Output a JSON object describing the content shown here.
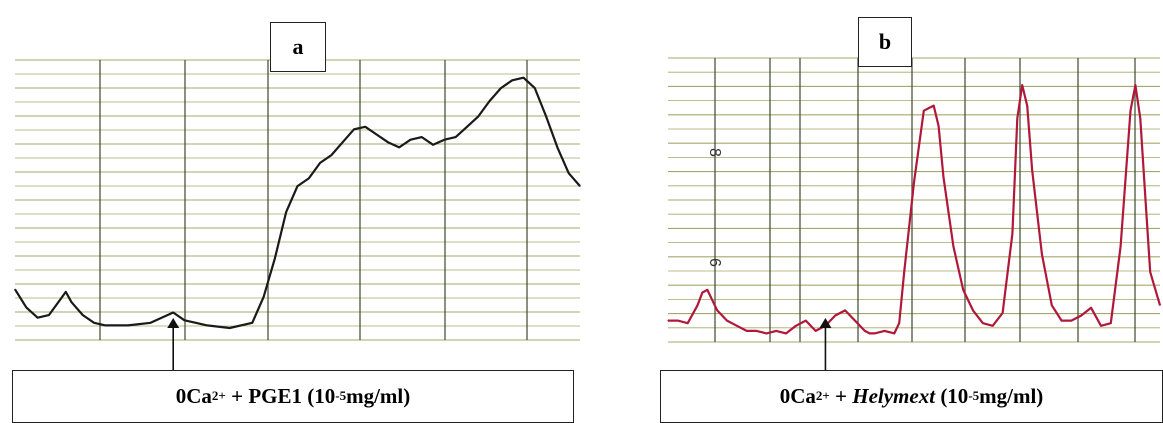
{
  "panels": [
    {
      "label": "a",
      "caption": {
        "prefix": "0Ca",
        "prefix_sup": "2+",
        "agent": "PGE1",
        "agent_italic": false,
        "conc_open": "(10",
        "conc_sup": "-5",
        "conc_close": " mg/ml)"
      },
      "trace_color": "#1a1a1a",
      "marker_label": "arrow"
    },
    {
      "label": "b",
      "caption": {
        "prefix": "0Ca",
        "prefix_sup": "2+",
        "agent": "Helymext",
        "agent_italic": true,
        "conc_open": "(10",
        "conc_sup": "-5",
        "conc_close": " mg/ml)"
      },
      "trace_color": "#b0183a",
      "marker_label": "arrow"
    }
  ],
  "chart_data": [
    {
      "type": "line",
      "title": "",
      "xlabel": "",
      "ylabel": "",
      "grid": true,
      "series": [
        {
          "x": [
            0,
            2,
            4,
            6,
            8,
            9,
            10,
            12,
            14,
            16,
            18,
            20,
            24,
            28,
            30,
            32,
            34,
            38,
            42,
            44,
            46,
            48,
            50,
            52,
            54,
            56,
            58,
            60,
            62,
            64,
            66,
            68,
            70,
            72,
            74,
            76,
            78,
            80,
            82,
            84,
            86,
            88,
            90,
            92,
            94,
            96,
            98,
            100
          ],
          "y": [
            0.15,
            0.08,
            0.04,
            0.05,
            0.11,
            0.14,
            0.1,
            0.05,
            0.02,
            0.01,
            0.01,
            0.01,
            0.02,
            0.06,
            0.03,
            0.02,
            0.01,
            0.0,
            0.02,
            0.12,
            0.27,
            0.45,
            0.55,
            0.58,
            0.64,
            0.67,
            0.72,
            0.77,
            0.78,
            0.75,
            0.72,
            0.7,
            0.73,
            0.74,
            0.71,
            0.73,
            0.74,
            0.78,
            0.82,
            0.88,
            0.93,
            0.96,
            0.97,
            0.93,
            0.82,
            0.7,
            0.6,
            0.55
          ]
        }
      ],
      "annotation_x": 28
    },
    {
      "type": "line",
      "title": "",
      "xlabel": "",
      "ylabel": "",
      "grid": true,
      "series": [
        {
          "x": [
            0,
            2,
            4,
            6,
            7,
            8,
            9,
            10,
            12,
            14,
            16,
            18,
            20,
            22,
            24,
            26,
            28,
            30,
            32,
            34,
            36,
            38,
            40,
            41,
            42,
            44,
            46,
            47,
            48,
            50,
            52,
            54,
            55,
            56,
            58,
            60,
            62,
            64,
            66,
            68,
            70,
            71,
            72,
            73,
            74,
            76,
            78,
            80,
            82,
            84,
            86,
            88,
            90,
            92,
            94,
            95,
            96,
            97,
            98,
            100
          ],
          "y": [
            0.06,
            0.06,
            0.05,
            0.12,
            0.17,
            0.18,
            0.14,
            0.1,
            0.06,
            0.04,
            0.02,
            0.02,
            0.01,
            0.02,
            0.01,
            0.04,
            0.06,
            0.02,
            0.04,
            0.08,
            0.1,
            0.06,
            0.02,
            0.01,
            0.01,
            0.02,
            0.01,
            0.05,
            0.25,
            0.6,
            0.88,
            0.9,
            0.82,
            0.62,
            0.35,
            0.18,
            0.1,
            0.05,
            0.04,
            0.09,
            0.4,
            0.85,
            0.98,
            0.9,
            0.65,
            0.32,
            0.12,
            0.06,
            0.06,
            0.08,
            0.11,
            0.04,
            0.05,
            0.35,
            0.88,
            0.98,
            0.85,
            0.55,
            0.25,
            0.12
          ]
        }
      ],
      "annotation_x": 32,
      "margin_labels": [
        "8",
        "6"
      ]
    }
  ]
}
